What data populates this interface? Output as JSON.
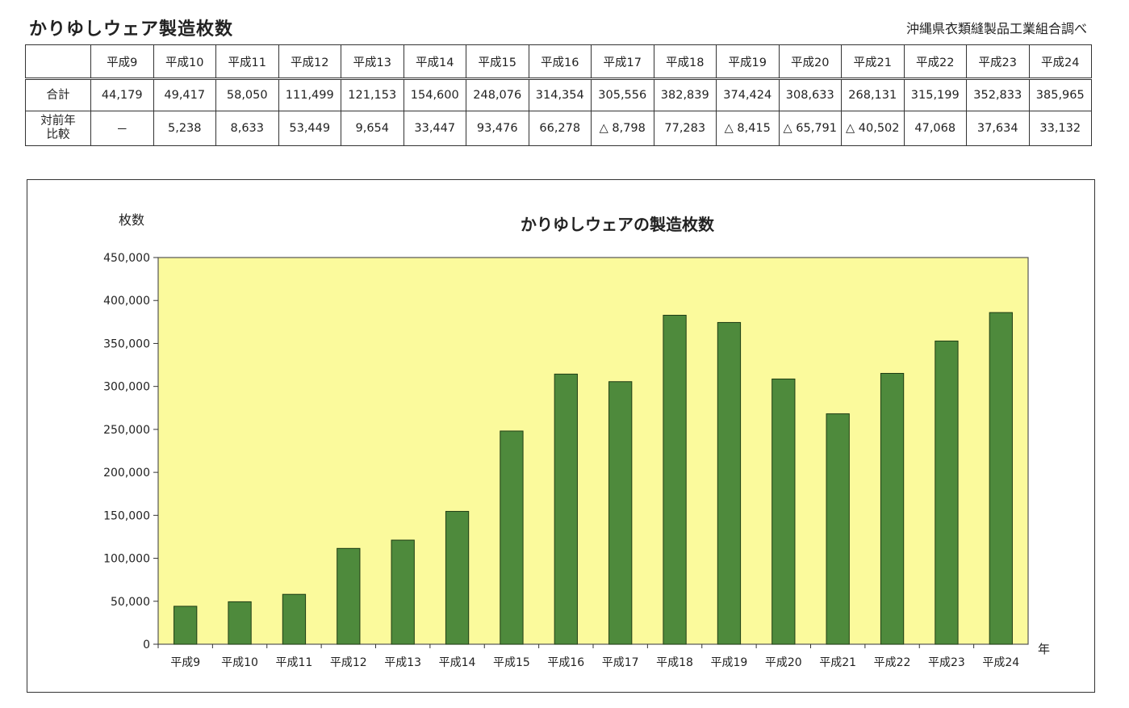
{
  "page": {
    "title": "かりゆしウェア製造枚数",
    "source": "沖縄県衣類縫製品工業組合調べ"
  },
  "table": {
    "columns": [
      "平成9",
      "平成10",
      "平成11",
      "平成12",
      "平成13",
      "平成14",
      "平成15",
      "平成16",
      "平成17",
      "平成18",
      "平成19",
      "平成20",
      "平成21",
      "平成22",
      "平成23",
      "平成24"
    ],
    "rows": [
      {
        "label": [
          "合計"
        ],
        "cells": [
          "44,179",
          "49,417",
          "58,050",
          "111,499",
          "121,153",
          "154,600",
          "248,076",
          "314,354",
          "305,556",
          "382,839",
          "374,424",
          "308,633",
          "268,131",
          "315,199",
          "352,833",
          "385,965"
        ]
      },
      {
        "label": [
          "対前年",
          "比較"
        ],
        "cells": [
          "－",
          "5,238",
          "8,633",
          "53,449",
          "9,654",
          "33,447",
          "93,476",
          "66,278",
          "△ 8,798",
          "77,283",
          "△ 8,415",
          "△ 65,791",
          "△ 40,502",
          "47,068",
          "37,634",
          "33,132"
        ]
      }
    ]
  },
  "chart_data": {
    "type": "bar",
    "title": "かりゆしウェアの製造枚数",
    "ylabel": "枚数",
    "xlabel": "年",
    "categories": [
      "平成9",
      "平成10",
      "平成11",
      "平成12",
      "平成13",
      "平成14",
      "平成15",
      "平成16",
      "平成17",
      "平成18",
      "平成19",
      "平成20",
      "平成21",
      "平成22",
      "平成23",
      "平成24"
    ],
    "values": [
      44179,
      49417,
      58050,
      111499,
      121153,
      154600,
      248076,
      314354,
      305556,
      382839,
      374424,
      308633,
      268131,
      315199,
      352833,
      385965
    ],
    "ylim": [
      0,
      450000
    ],
    "yticks": [
      0,
      50000,
      100000,
      150000,
      200000,
      250000,
      300000,
      350000,
      400000,
      450000
    ],
    "ytick_labels": [
      "0",
      "50,000",
      "100,000",
      "150,000",
      "200,000",
      "250,000",
      "300,000",
      "350,000",
      "400,000",
      "450,000"
    ],
    "grid": false,
    "legend": "none",
    "colors": {
      "bar": "#4e8a3c",
      "bar_edge": "#1f3d14",
      "plot_bg": "#fbfa9c"
    }
  }
}
